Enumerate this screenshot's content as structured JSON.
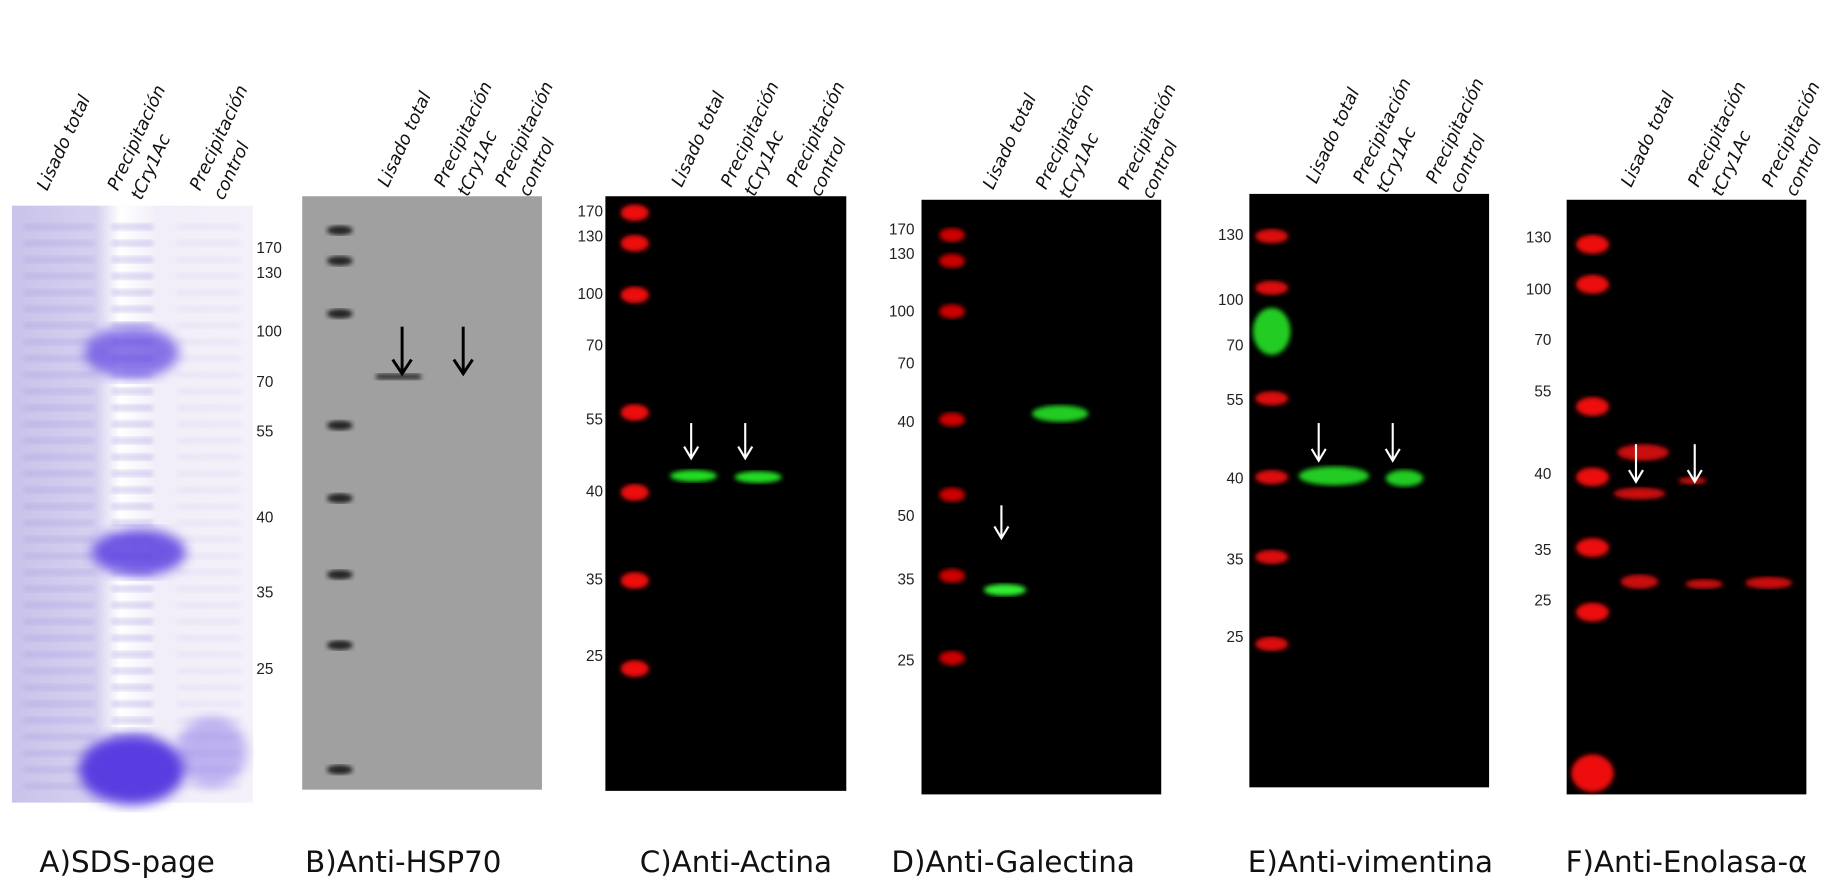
{
  "panels": [
    {
      "caption": "A)SDS-page",
      "lanes": [
        [
          "Lisado total"
        ],
        [
          "Precipitación",
          "tCry1Ac"
        ],
        [
          "Precipitación",
          "control"
        ]
      ],
      "markers": [
        "170",
        "130",
        "100",
        "70",
        "55",
        "40",
        "35",
        "25"
      ]
    },
    {
      "caption": "B)Anti-HSP70",
      "lanes": [
        [
          "Lisado total"
        ],
        [
          "Precipitación",
          "tCry1Ac"
        ],
        [
          "Precipitación",
          "control"
        ]
      ],
      "markers": []
    },
    {
      "caption": "C)Anti-Actina",
      "lanes": [
        [
          "Lisado total"
        ],
        [
          "Precipitación",
          "tCry1Ac"
        ],
        [
          "Precipitación",
          "control"
        ]
      ],
      "markers": [
        "170",
        "130",
        "100",
        "70",
        "55",
        "40",
        "35",
        "25"
      ]
    },
    {
      "caption": "D)Anti-Galectina",
      "lanes": [
        [
          "Lisado total"
        ],
        [
          "Precipitación",
          "tCry1Ac"
        ],
        [
          "Precipitación",
          "control"
        ]
      ],
      "markers": [
        "170",
        "130",
        "100",
        "70",
        "40",
        "50",
        "35",
        "25"
      ]
    },
    {
      "caption": "E)Anti-vimentina",
      "lanes": [
        [
          "Lisado total"
        ],
        [
          "Precipitación",
          "tCry1Ac"
        ],
        [
          "Precipitación",
          "control"
        ]
      ],
      "markers": [
        "130",
        "100",
        "70",
        "55",
        "40",
        "35",
        "25"
      ]
    },
    {
      "caption": "F)Anti-Enolasa-α",
      "lanes": [
        [
          "Lisado total"
        ],
        [
          "Precipitación",
          "tCry1Ac"
        ],
        [
          "Precipitación",
          "control"
        ]
      ],
      "markers": [
        "130",
        "100",
        "70",
        "55",
        "40",
        "35",
        "25"
      ]
    }
  ]
}
